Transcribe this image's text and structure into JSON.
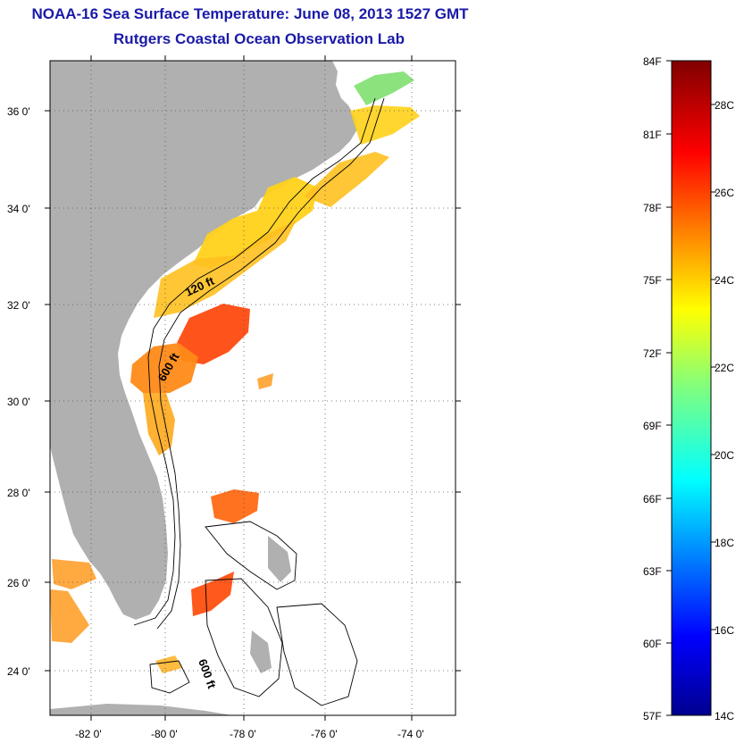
{
  "title_line1": "NOAA-16 Sea Surface Temperature:  June 08, 2013 1527 GMT",
  "title_line2": "Rutgers Coastal Ocean Observation Lab",
  "map": {
    "lat_ticks": [
      {
        "value": 36,
        "label": "36 0'"
      },
      {
        "value": 34,
        "label": "34 0'"
      },
      {
        "value": 32,
        "label": "32 0'"
      },
      {
        "value": 30,
        "label": "30 0'"
      },
      {
        "value": 28,
        "label": "28 0'"
      },
      {
        "value": 26,
        "label": "26 0'"
      },
      {
        "value": 24,
        "label": "24 0'"
      }
    ],
    "lon_ticks": [
      {
        "value": -82,
        "label": "-82 0'"
      },
      {
        "value": -80,
        "label": "-80 0'"
      },
      {
        "value": -78,
        "label": "-78 0'"
      },
      {
        "value": -76,
        "label": "-76 0'"
      },
      {
        "value": -74,
        "label": "-74 0'"
      }
    ],
    "contour_labels": [
      "120 ft",
      "600 ft",
      "600 ft"
    ],
    "colors": {
      "land": "#b0b0b0",
      "ocean": "#ffffff",
      "contour": "#000000",
      "grid": "#555555"
    }
  },
  "colorbar": {
    "f_labels": [
      "84F",
      "81F",
      "78F",
      "75F",
      "72F",
      "69F",
      "66F",
      "63F",
      "60F",
      "57F"
    ],
    "c_labels": [
      "28C",
      "26C",
      "24C",
      "22C",
      "20C",
      "18C",
      "16C",
      "14C"
    ],
    "range_f": [
      57,
      84
    ],
    "colormap": [
      "#00008f",
      "#0000ff",
      "#00ffff",
      "#ffff00",
      "#ff0000",
      "#800000"
    ]
  }
}
